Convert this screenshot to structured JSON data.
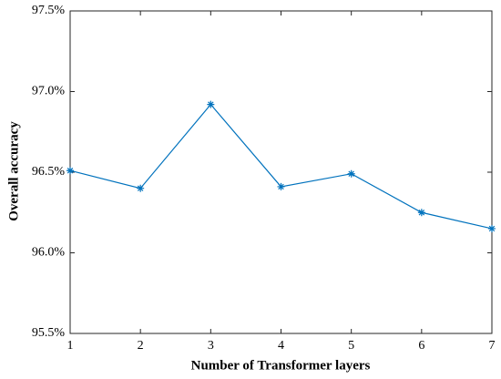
{
  "chart_data": {
    "type": "line",
    "x_label": "Number of Transformer layers",
    "y_label": "Overall accuracy",
    "x": [
      1,
      2,
      3,
      4,
      5,
      6,
      7
    ],
    "series": [
      {
        "color": "#0072bd",
        "values": [
          96.51,
          96.4,
          96.92,
          96.41,
          96.49,
          96.25,
          96.15
        ]
      }
    ],
    "xlim": [
      1,
      7
    ],
    "xticks": [
      1,
      2,
      3,
      4,
      5,
      6,
      7
    ],
    "ylim": [
      95.5,
      97.5
    ],
    "yticks": [
      {
        "value": 95.5,
        "label": "95.5%"
      },
      {
        "value": 96.0,
        "label": "96.0%"
      },
      {
        "value": 96.5,
        "label": "96.5%"
      },
      {
        "value": 97.0,
        "label": "97.0%"
      },
      {
        "value": 97.5,
        "label": "97.5%"
      }
    ],
    "grid": false
  }
}
